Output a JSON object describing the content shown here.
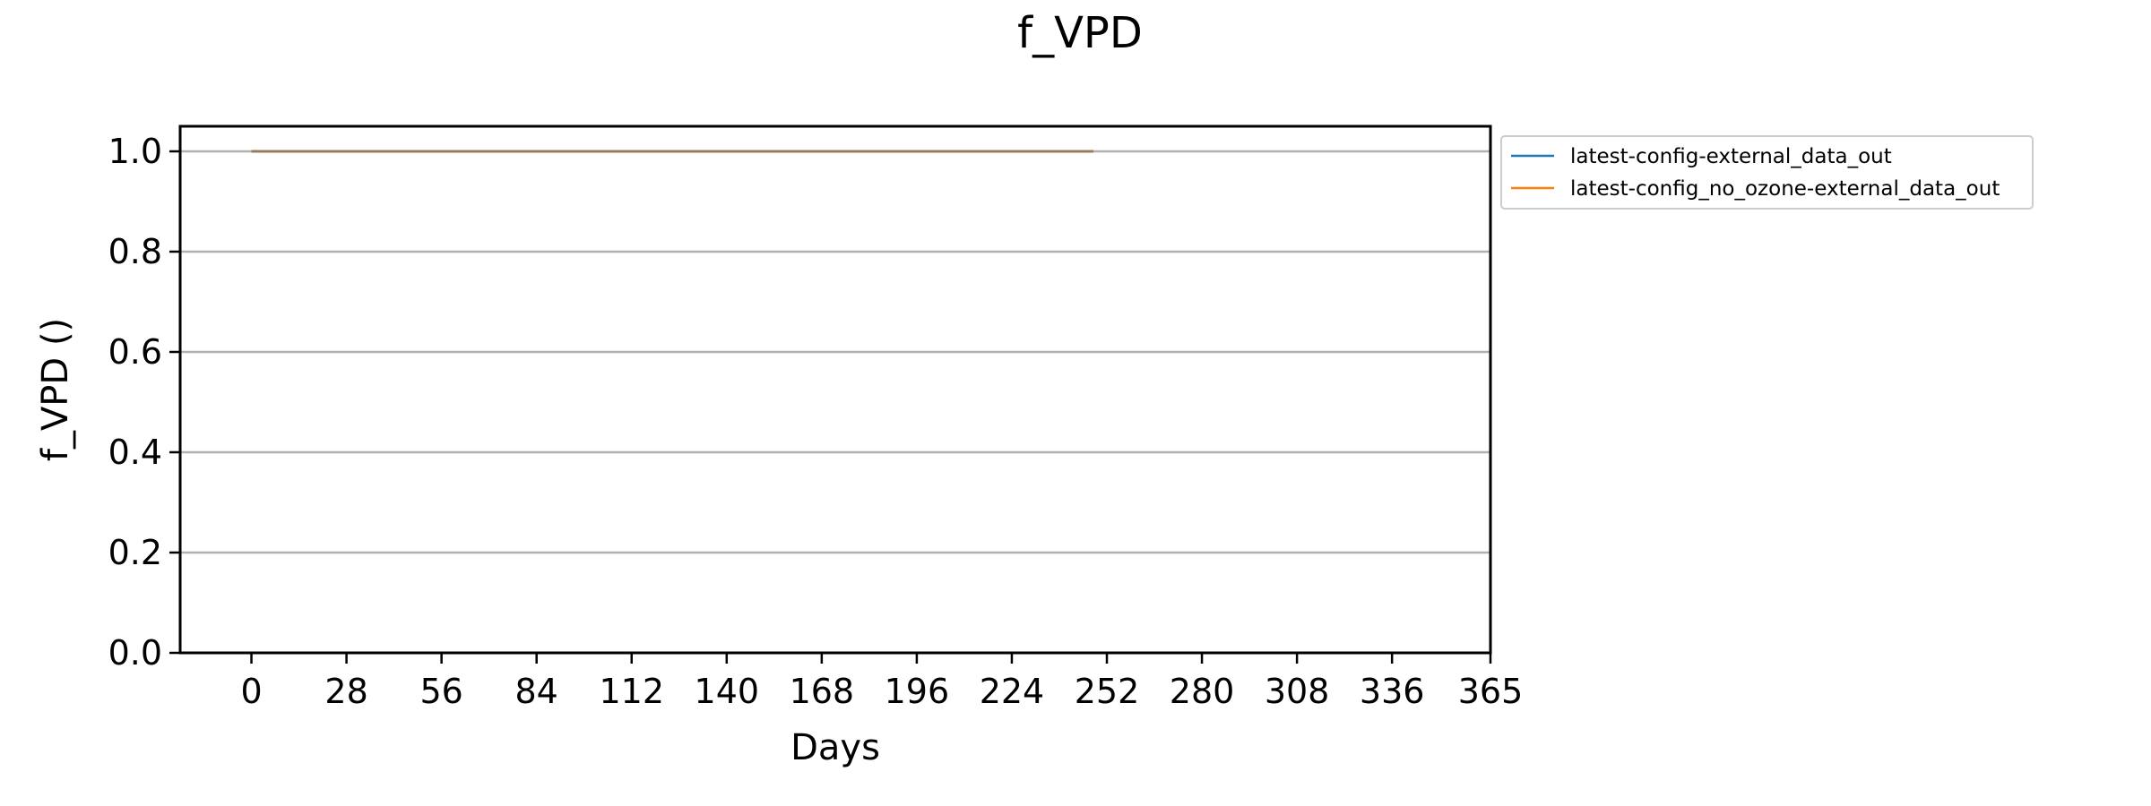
{
  "chart_data": {
    "type": "line",
    "title": "f_VPD",
    "xlabel": "Days",
    "ylabel": "f_VPD ()",
    "xlim": [
      -21,
      365
    ],
    "ylim": [
      0.0,
      1.05
    ],
    "xticks": [
      0,
      28,
      56,
      84,
      112,
      140,
      168,
      196,
      224,
      252,
      280,
      308,
      336,
      365
    ],
    "yticks": [
      0.0,
      0.2,
      0.4,
      0.6,
      0.8,
      1.0
    ],
    "ytick_labels": [
      "0.0",
      "0.2",
      "0.4",
      "0.6",
      "0.8",
      "1.0"
    ],
    "grid": "horizontal",
    "legend_position": "outside top-right",
    "series": [
      {
        "name": "latest-config-external_data_out",
        "color": "#1f77b4",
        "x": [
          0,
          248
        ],
        "y": [
          1.0,
          1.0
        ]
      },
      {
        "name": "latest-config_no_ozone-external_data_out",
        "color": "#ff7f0e",
        "x": [
          0,
          248
        ],
        "y": [
          1.0,
          1.0
        ]
      }
    ]
  }
}
